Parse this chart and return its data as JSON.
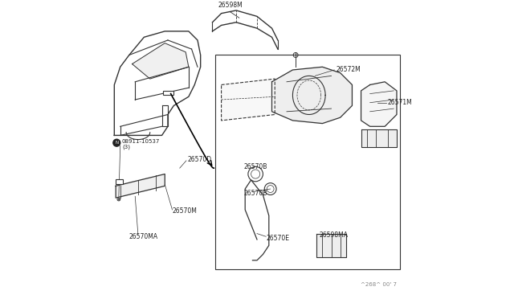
{
  "bg_color": "#ffffff",
  "line_color": "#333333",
  "text_color": "#222222",
  "parts": {
    "26598M": {
      "label": "26598M"
    },
    "26572M": {
      "label": "26572M"
    },
    "26571M": {
      "label": "26571M"
    },
    "26570D": {
      "label": "26570D"
    },
    "26570B": {
      "label": "26570B"
    },
    "26570E": {
      "label": "26570E"
    },
    "26570M": {
      "label": "26570M"
    },
    "26570MA": {
      "label": "26570MA"
    },
    "26598MA": {
      "label": "26598MA"
    },
    "08911": {
      "label": "08911-10537"
    },
    "N_label": {
      "label": "N"
    }
  },
  "watermark": "^268^ 00' 7"
}
